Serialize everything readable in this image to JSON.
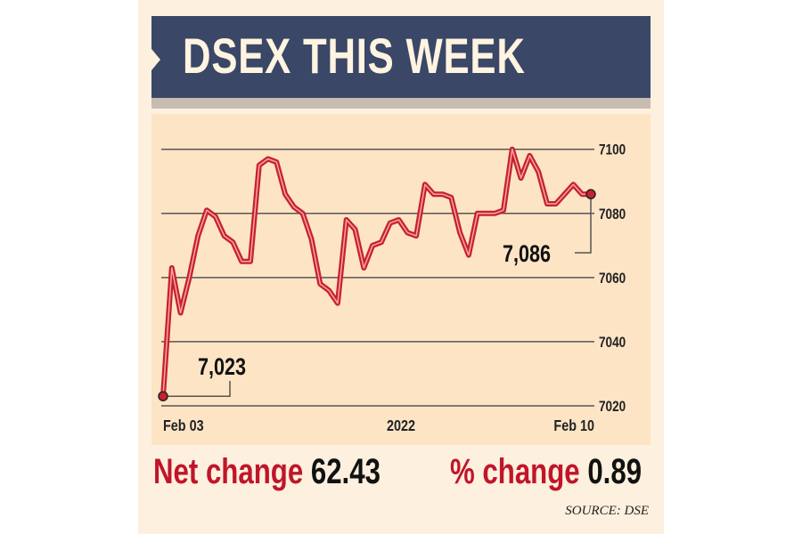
{
  "title": "DSEX THIS WEEK",
  "chart_data": {
    "type": "line",
    "title": "DSEX THIS WEEK",
    "x_tick_labels": [
      "Feb 03",
      "2022",
      "Feb 10"
    ],
    "y_ticks": [
      7100,
      7080,
      7060,
      7040,
      7020
    ],
    "ylim": [
      7020,
      7100
    ],
    "grid": "horizontal",
    "y_axis_side": "right",
    "line_color": "#c8202e",
    "values": [
      7023,
      7063,
      7049,
      7060,
      7073,
      7081,
      7079,
      7073,
      7071,
      7065,
      7065,
      7095,
      7097,
      7096,
      7086,
      7082,
      7080,
      7072,
      7058,
      7056,
      7052,
      7078,
      7075,
      7063,
      7070,
      7071,
      7077,
      7078,
      7074,
      7073,
      7089,
      7086,
      7086,
      7085,
      7074,
      7067,
      7080,
      7080,
      7080,
      7081,
      7100,
      7091,
      7098,
      7093,
      7083,
      7083,
      7086,
      7089,
      7086,
      7086
    ],
    "annotations": [
      {
        "label": "7,023",
        "point": "start"
      },
      {
        "label": "7,086",
        "point": "end"
      }
    ]
  },
  "stats": {
    "net_change_label": "Net change",
    "net_change_value": "62.43",
    "pct_change_label": "% change",
    "pct_change_value": "0.89"
  },
  "source": "SOURCE: DSE"
}
